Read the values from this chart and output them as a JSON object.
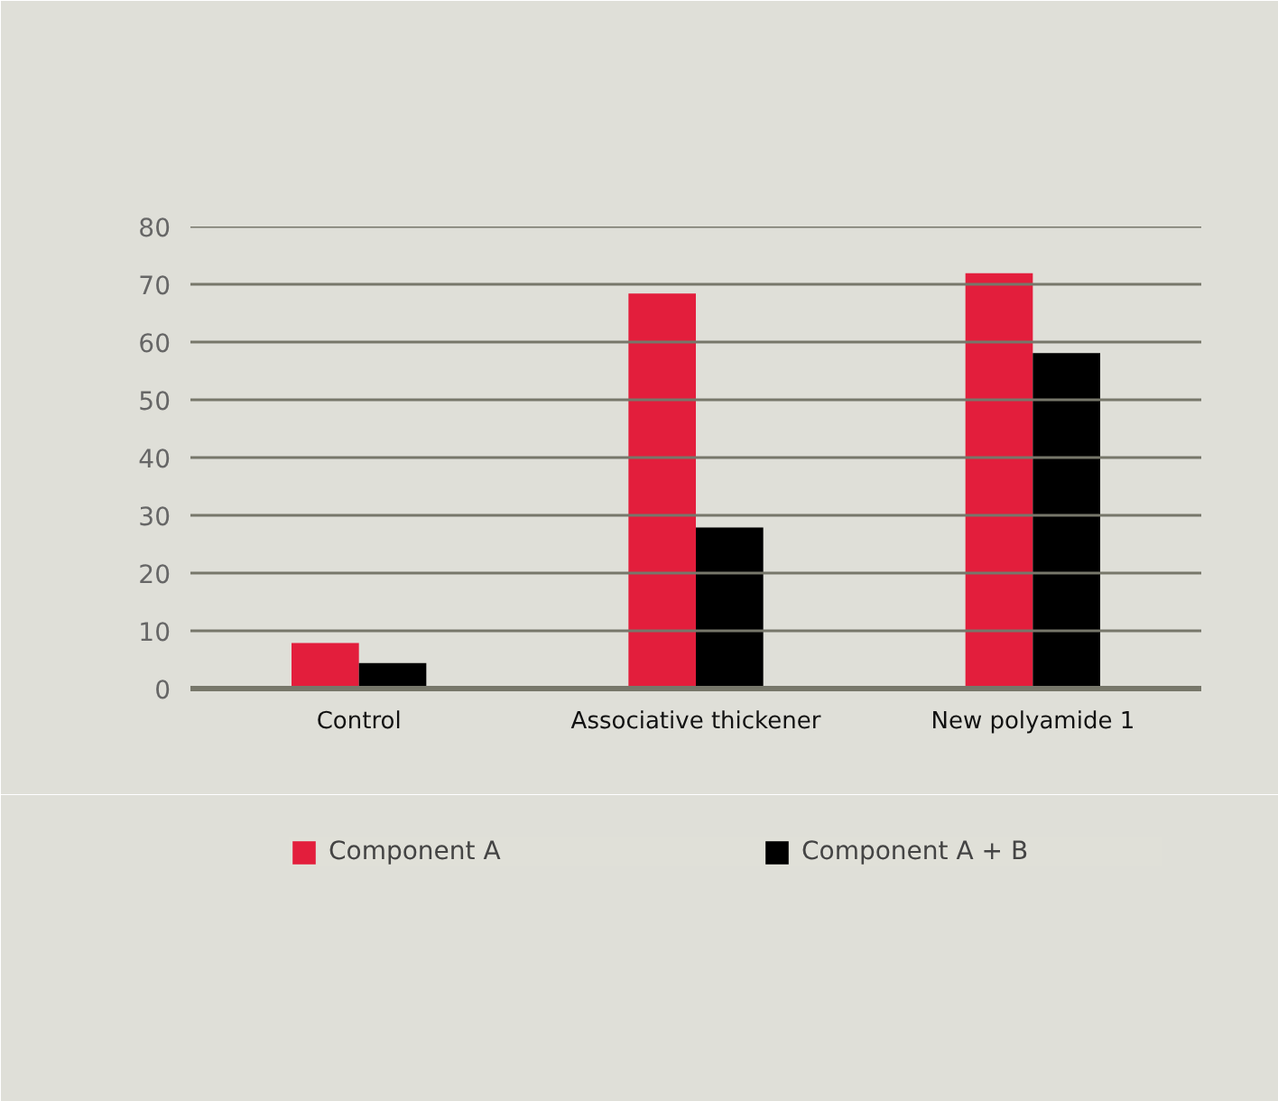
{
  "chart_data": {
    "type": "bar",
    "categories": [
      "Control",
      "Associative thickener",
      "New polyamide 1"
    ],
    "series": [
      {
        "name": "Component A",
        "color": "#e31e3c",
        "values": [
          7.9,
          68.4,
          71.9
        ]
      },
      {
        "name": "Component A + B",
        "color": "#000000",
        "values": [
          4.4,
          27.9,
          58.1
        ]
      }
    ],
    "ylim": [
      0,
      80
    ],
    "yticks": [
      0,
      10,
      20,
      30,
      40,
      50,
      60,
      70,
      80
    ],
    "grid": "y",
    "legend": "bottom"
  }
}
